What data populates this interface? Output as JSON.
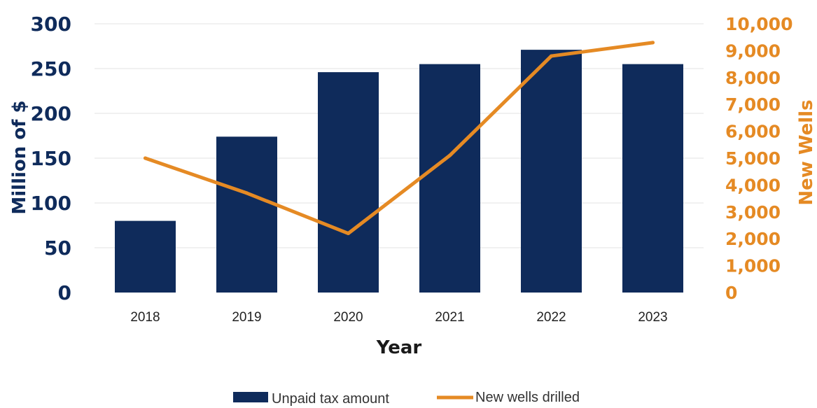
{
  "chart_data": {
    "type": "bar",
    "title": "",
    "categories": [
      "2018",
      "2019",
      "2020",
      "2021",
      "2022",
      "2023"
    ],
    "xlabel": "Year",
    "ylabel": "Million of $",
    "y2label": "New Wells",
    "ylim": [
      0,
      300
    ],
    "y2lim": [
      0,
      10000
    ],
    "y_ticks": [
      "0",
      "50",
      "100",
      "150",
      "200",
      "250",
      "300"
    ],
    "y2_ticks": [
      "0",
      "1,000",
      "2,000",
      "3,000",
      "4,000",
      "5,000",
      "6,000",
      "7,000",
      "8,000",
      "9,000",
      "10,000"
    ],
    "grid": true,
    "legend_position": "bottom",
    "series": [
      {
        "name": "Unpaid tax amount",
        "type": "bar",
        "axis": "left",
        "color": "#0f2b5b",
        "values": [
          80,
          174,
          246,
          255,
          271,
          255
        ]
      },
      {
        "name": "New wells drilled",
        "type": "line",
        "axis": "right",
        "color": "#e58a24",
        "values": [
          5000,
          3700,
          2200,
          5100,
          8800,
          9300
        ]
      }
    ]
  }
}
